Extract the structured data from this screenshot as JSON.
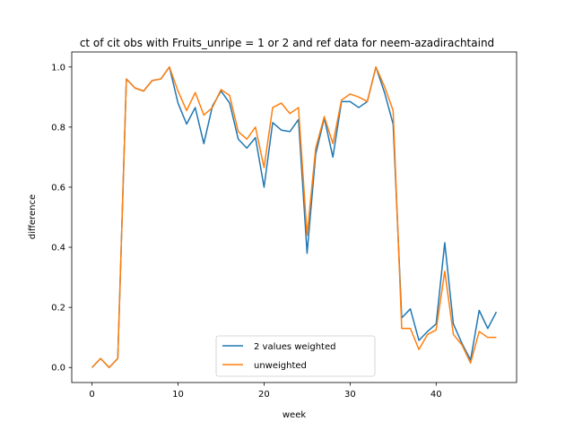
{
  "chart_data": {
    "type": "line",
    "title": "ct of cit obs with Fruits_unripe = 1 or 2 and ref data for neem-azadirachtaind",
    "xlabel": "week",
    "ylabel": "difference",
    "xlim": [
      -2.35,
      49.35
    ],
    "ylim": [
      -0.05,
      1.05
    ],
    "xticks": [
      0,
      10,
      20,
      30,
      40
    ],
    "yticks": [
      0.0,
      0.2,
      0.4,
      0.6,
      0.8,
      1.0
    ],
    "xtick_labels": [
      "0",
      "10",
      "20",
      "30",
      "40"
    ],
    "ytick_labels": [
      "0.0",
      "0.2",
      "0.4",
      "0.6",
      "0.8",
      "1.0"
    ],
    "grid": false,
    "legend_position": "lower center",
    "x": [
      0,
      1,
      2,
      3,
      4,
      5,
      6,
      7,
      8,
      9,
      10,
      11,
      12,
      13,
      14,
      15,
      16,
      17,
      18,
      19,
      20,
      21,
      22,
      23,
      24,
      25,
      26,
      27,
      28,
      29,
      30,
      31,
      32,
      33,
      34,
      35,
      36,
      37,
      38,
      39,
      40,
      41,
      42,
      43,
      44,
      45,
      46,
      47
    ],
    "series": [
      {
        "name": "2 values weighted",
        "color": "#1f77b4",
        "values": [
          0.0,
          0.03,
          0.0,
          0.03,
          0.96,
          0.93,
          0.92,
          0.955,
          0.96,
          1.0,
          0.88,
          0.81,
          0.865,
          0.745,
          0.87,
          0.92,
          0.88,
          0.76,
          0.73,
          0.765,
          0.6,
          0.815,
          0.79,
          0.785,
          0.825,
          0.38,
          0.71,
          0.83,
          0.7,
          0.885,
          0.885,
          0.865,
          0.885,
          1.0,
          0.915,
          0.81,
          0.165,
          0.195,
          0.09,
          0.12,
          0.145,
          0.415,
          0.145,
          0.08,
          0.025,
          0.19,
          0.13,
          0.185
        ]
      },
      {
        "name": "unweighted",
        "color": "#ff7f0e",
        "values": [
          0.0,
          0.03,
          0.0,
          0.03,
          0.96,
          0.93,
          0.92,
          0.955,
          0.96,
          1.0,
          0.92,
          0.855,
          0.915,
          0.84,
          0.865,
          0.925,
          0.905,
          0.785,
          0.76,
          0.8,
          0.665,
          0.865,
          0.88,
          0.845,
          0.865,
          0.44,
          0.73,
          0.835,
          0.745,
          0.89,
          0.91,
          0.9,
          0.885,
          1.0,
          0.935,
          0.855,
          0.13,
          0.13,
          0.06,
          0.11,
          0.125,
          0.32,
          0.11,
          0.075,
          0.015,
          0.12,
          0.1,
          0.1
        ]
      }
    ]
  }
}
